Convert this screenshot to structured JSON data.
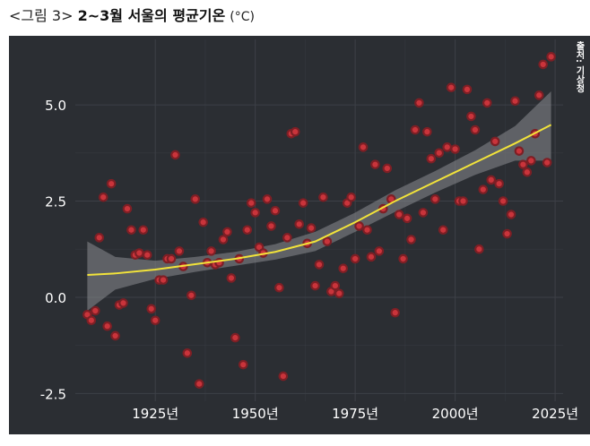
{
  "caption": {
    "lead": "<그림 3>",
    "title": "2~3월 서울의 평균기온",
    "unit": "(°C)"
  },
  "source": "출처: 기상청",
  "colors": {
    "background": "#2b2e33",
    "grid": "#3d4047",
    "point_fill": "#c9343b",
    "point_stroke": "#7d1f25",
    "trend": "#f2e33a",
    "band": "#8a8c90",
    "tick_text": "#ffffff"
  },
  "chart_data": {
    "type": "scatter",
    "title": "2~3월 서울의 평균기온",
    "xlabel": "",
    "ylabel": "",
    "xlim": [
      1905,
      2027
    ],
    "ylim": [
      -2.7,
      6.7
    ],
    "x_ticks": [
      1925,
      1950,
      1975,
      2000,
      2025
    ],
    "x_tick_labels": [
      "1925년",
      "1950년",
      "1975년",
      "2000년",
      "2025년"
    ],
    "y_ticks": [
      -2.5,
      0,
      2.5,
      5
    ],
    "y_tick_labels": [
      "-2.5",
      "0.0",
      "2.5",
      "5.0"
    ],
    "grid": true,
    "legend": "none",
    "points": [
      [
        1908,
        -0.45
      ],
      [
        1909,
        -0.6
      ],
      [
        1910,
        -0.35
      ],
      [
        1911,
        1.55
      ],
      [
        1912,
        2.6
      ],
      [
        1913,
        -0.75
      ],
      [
        1914,
        2.95
      ],
      [
        1915,
        -1.0
      ],
      [
        1916,
        -0.2
      ],
      [
        1917,
        -0.15
      ],
      [
        1918,
        2.3
      ],
      [
        1919,
        1.75
      ],
      [
        1920,
        1.1
      ],
      [
        1921,
        1.15
      ],
      [
        1922,
        1.75
      ],
      [
        1923,
        1.1
      ],
      [
        1924,
        -0.3
      ],
      [
        1925,
        -0.6
      ],
      [
        1926,
        0.45
      ],
      [
        1927,
        0.45
      ],
      [
        1928,
        1.0
      ],
      [
        1929,
        1.0
      ],
      [
        1930,
        3.7
      ],
      [
        1931,
        1.2
      ],
      [
        1932,
        0.8
      ],
      [
        1933,
        -1.45
      ],
      [
        1934,
        0.05
      ],
      [
        1935,
        2.55
      ],
      [
        1936,
        -2.25
      ],
      [
        1937,
        1.95
      ],
      [
        1938,
        0.9
      ],
      [
        1939,
        1.2
      ],
      [
        1940,
        0.85
      ],
      [
        1941,
        0.9
      ],
      [
        1942,
        1.5
      ],
      [
        1943,
        1.7
      ],
      [
        1944,
        0.5
      ],
      [
        1945,
        -1.05
      ],
      [
        1946,
        1.0
      ],
      [
        1947,
        -1.75
      ],
      [
        1948,
        1.75
      ],
      [
        1949,
        2.45
      ],
      [
        1950,
        2.2
      ],
      [
        1951,
        1.3
      ],
      [
        1952,
        1.15
      ],
      [
        1953,
        2.55
      ],
      [
        1954,
        1.85
      ],
      [
        1955,
        2.25
      ],
      [
        1956,
        0.25
      ],
      [
        1957,
        -2.05
      ],
      [
        1958,
        1.55
      ],
      [
        1959,
        4.25
      ],
      [
        1960,
        4.3
      ],
      [
        1961,
        1.9
      ],
      [
        1962,
        2.45
      ],
      [
        1963,
        1.4
      ],
      [
        1964,
        1.8
      ],
      [
        1965,
        0.3
      ],
      [
        1966,
        0.85
      ],
      [
        1967,
        2.6
      ],
      [
        1968,
        1.45
      ],
      [
        1969,
        0.15
      ],
      [
        1970,
        0.3
      ],
      [
        1971,
        0.1
      ],
      [
        1972,
        0.75
      ],
      [
        1973,
        2.45
      ],
      [
        1974,
        2.6
      ],
      [
        1975,
        1.0
      ],
      [
        1976,
        1.85
      ],
      [
        1977,
        3.9
      ],
      [
        1978,
        1.75
      ],
      [
        1979,
        1.05
      ],
      [
        1980,
        3.45
      ],
      [
        1981,
        1.2
      ],
      [
        1982,
        2.3
      ],
      [
        1983,
        3.35
      ],
      [
        1984,
        2.55
      ],
      [
        1985,
        -0.4
      ],
      [
        1986,
        2.15
      ],
      [
        1987,
        1.0
      ],
      [
        1988,
        2.05
      ],
      [
        1989,
        1.5
      ],
      [
        1990,
        4.35
      ],
      [
        1991,
        5.05
      ],
      [
        1992,
        2.2
      ],
      [
        1993,
        4.3
      ],
      [
        1994,
        3.6
      ],
      [
        1995,
        2.55
      ],
      [
        1996,
        3.75
      ],
      [
        1997,
        1.75
      ],
      [
        1998,
        3.9
      ],
      [
        1999,
        5.45
      ],
      [
        2000,
        3.85
      ],
      [
        2001,
        2.5
      ],
      [
        2002,
        2.5
      ],
      [
        2003,
        5.4
      ],
      [
        2004,
        4.7
      ],
      [
        2005,
        4.35
      ],
      [
        2006,
        1.25
      ],
      [
        2007,
        2.8
      ],
      [
        2008,
        5.05
      ],
      [
        2009,
        3.05
      ],
      [
        2010,
        4.05
      ],
      [
        2011,
        2.95
      ],
      [
        2012,
        2.5
      ],
      [
        2013,
        1.65
      ],
      [
        2014,
        2.15
      ],
      [
        2015,
        5.1
      ],
      [
        2016,
        3.8
      ],
      [
        2017,
        3.45
      ],
      [
        2018,
        3.25
      ],
      [
        2019,
        3.55
      ],
      [
        2020,
        4.25
      ],
      [
        2021,
        5.25
      ],
      [
        2022,
        6.05
      ],
      [
        2023,
        3.5
      ],
      [
        2024,
        6.25
      ]
    ],
    "trend": {
      "x": [
        1908,
        1915,
        1925,
        1935,
        1945,
        1955,
        1965,
        1975,
        1985,
        1995,
        2005,
        2015,
        2024
      ],
      "y": [
        0.58,
        0.62,
        0.72,
        0.86,
        1.0,
        1.18,
        1.45,
        1.95,
        2.5,
        3.0,
        3.5,
        4.0,
        4.48
      ],
      "upper": [
        1.45,
        1.05,
        0.95,
        1.05,
        1.18,
        1.38,
        1.7,
        2.2,
        2.78,
        3.28,
        3.82,
        4.45,
        5.35
      ],
      "lower": [
        -0.35,
        0.2,
        0.48,
        0.66,
        0.82,
        0.98,
        1.2,
        1.7,
        2.22,
        2.72,
        3.18,
        3.55,
        3.55
      ]
    }
  }
}
